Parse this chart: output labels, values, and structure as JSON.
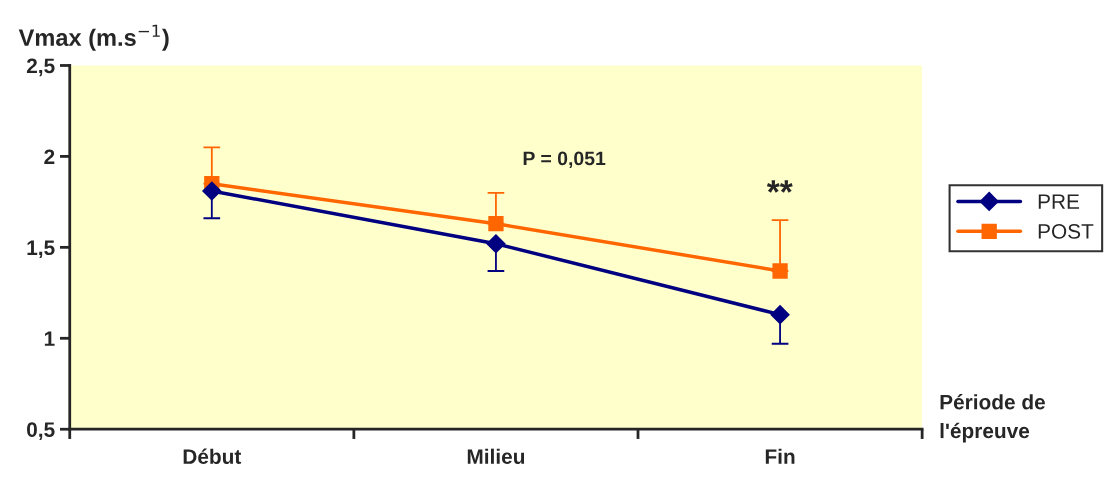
{
  "chart_data": {
    "type": "line",
    "ylabel": "Vmax (m.s$^{−1}$)",
    "xlabel": "Période de\nl'épreuve",
    "categories": [
      "Début",
      "Milieu",
      "Fin"
    ],
    "series": [
      {
        "name": "PRE",
        "color": "#000080",
        "marker": "diamond",
        "values": [
          1.81,
          1.52,
          1.13
        ],
        "errors": [
          [
            1.66,
            1.81
          ],
          [
            1.37,
            1.52
          ],
          [
            0.97,
            1.13
          ]
        ]
      },
      {
        "name": "POST",
        "color": "#ff6600",
        "marker": "square",
        "values": [
          1.85,
          1.63,
          1.37
        ],
        "errors": [
          [
            1.85,
            2.05
          ],
          [
            1.63,
            1.8
          ],
          [
            1.37,
            1.65
          ]
        ]
      }
    ],
    "ylim": [
      0.5,
      2.5
    ],
    "yticks": [
      {
        "value": 0.5,
        "label": "0,5"
      },
      1,
      {
        "value": 1.5,
        "label": "1,5"
      },
      2,
      {
        "value": 2.5,
        "label": "2,5"
      }
    ],
    "annotations": [
      "P = 0,051",
      "**"
    ],
    "legend": "right",
    "grid": false
  }
}
